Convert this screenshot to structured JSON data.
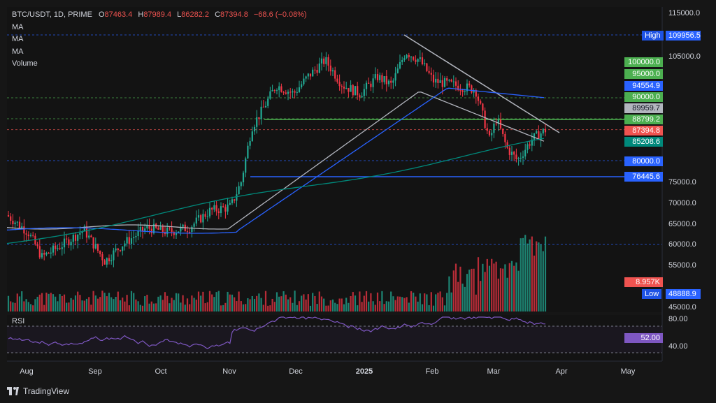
{
  "header": {
    "symbol": "BTC/USDT, 1D, PRIME",
    "open_label": "O",
    "open": "87463.4",
    "high_label": "H",
    "high": "87989.4",
    "low_label": "L",
    "low": "86282.2",
    "close_label": "C",
    "close": "87394.8",
    "change": "−68.6 (−0.08%)",
    "indicators": [
      "MA",
      "MA",
      "MA",
      "Volume"
    ]
  },
  "rsi_label": "RSI",
  "brand": "TradingView",
  "price_axis": [
    "115000.0",
    "105000.0",
    "75000.0",
    "70000.0",
    "65000.0",
    "60000.0",
    "55000.0",
    "45000.0"
  ],
  "rsi_axis": [
    "80.00",
    "40.00"
  ],
  "time_axis": [
    "Aug",
    "Sep",
    "Oct",
    "Nov",
    "Dec",
    "2025",
    "Feb",
    "Mar",
    "Apr",
    "May"
  ],
  "high_marker": {
    "label": "High",
    "value": "109956.5"
  },
  "low_marker": {
    "label": "Low",
    "value": "48888.9"
  },
  "price_tags": [
    {
      "value": "100000.0",
      "color": "#4caf50"
    },
    {
      "value": "95000.0",
      "color": "#4caf50"
    },
    {
      "value": "94554.9",
      "color": "#2962ff"
    },
    {
      "value": "90000.0",
      "color": "#4caf50"
    },
    {
      "value": "89959.7",
      "color": "#b2b5be"
    },
    {
      "value": "88799.2",
      "color": "#4caf50"
    },
    {
      "value": "87394.8",
      "color": "#ef5350"
    },
    {
      "value": "85208.6",
      "color": "#00897b"
    },
    {
      "value": "80000.0",
      "color": "#2962ff"
    },
    {
      "value": "76445.6",
      "color": "#2962ff"
    },
    {
      "value": "8.957K",
      "color": "#ef5350"
    },
    {
      "value": "52.00",
      "color": "#7e57c2"
    }
  ]
}
